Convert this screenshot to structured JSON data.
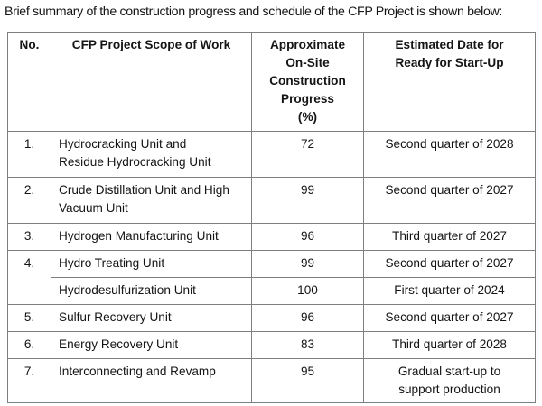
{
  "intro": "Brief summary of the construction progress and schedule of the CFP Project is shown below:",
  "table": {
    "headers": {
      "no": "No.",
      "scope": "CFP Project Scope of Work",
      "progress_lines": [
        "Approximate",
        "On-Site",
        "Construction",
        "Progress",
        "(%)"
      ],
      "date_lines": [
        "Estimated Date for",
        "Ready for Start-Up"
      ]
    },
    "rows": [
      {
        "no": "1.",
        "scope_lines": [
          "Hydrocracking Unit and",
          "Residue Hydrocracking Unit"
        ],
        "progress": "72",
        "date_lines": [
          "Second quarter of 2028"
        ]
      },
      {
        "no": "2.",
        "scope_lines": [
          "Crude Distillation Unit and High",
          "Vacuum Unit"
        ],
        "progress": "99",
        "date_lines": [
          "Second quarter of 2027"
        ]
      },
      {
        "no": "3.",
        "scope_lines": [
          "Hydrogen Manufacturing Unit"
        ],
        "progress": "96",
        "date_lines": [
          "Third quarter of 2027"
        ]
      },
      {
        "no": "4.",
        "scope_lines": [
          "Hydro Treating Unit"
        ],
        "progress": "99",
        "date_lines": [
          "Second quarter of 2027"
        ]
      },
      {
        "no": "",
        "scope_lines": [
          "Hydrodesulfurization Unit"
        ],
        "progress": "100",
        "date_lines": [
          "First quarter of 2024"
        ]
      },
      {
        "no": "5.",
        "scope_lines": [
          "Sulfur Recovery Unit"
        ],
        "progress": "96",
        "date_lines": [
          "Second quarter of 2027"
        ]
      },
      {
        "no": "6.",
        "scope_lines": [
          "Energy Recovery Unit"
        ],
        "progress": "83",
        "date_lines": [
          "Third quarter of 2028"
        ]
      },
      {
        "no": "7.",
        "scope_lines": [
          "Interconnecting and Revamp"
        ],
        "progress": "95",
        "date_lines": [
          "Gradual start-up to",
          "support production"
        ]
      }
    ]
  },
  "colors": {
    "text": "#141414",
    "border": "#7f7f7f",
    "background": "#ffffff"
  }
}
